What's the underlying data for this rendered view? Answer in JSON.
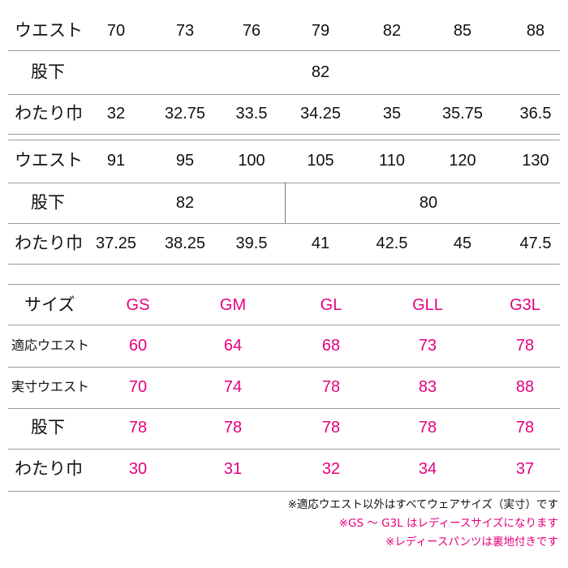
{
  "table_1": {
    "rows": [
      {
        "label": "ウエスト",
        "values": [
          70,
          73,
          76,
          79,
          82,
          85,
          88
        ]
      },
      {
        "label": "股下",
        "values": [
          82
        ]
      },
      {
        "label": "わたり巾",
        "values": [
          32,
          32.75,
          33.5,
          34.25,
          35,
          35.75,
          36.5
        ]
      }
    ]
  },
  "table_2": {
    "rows": [
      {
        "label": "ウエスト",
        "values": [
          91,
          95,
          100,
          105,
          110,
          120,
          130
        ]
      },
      {
        "label": "股下",
        "values": [
          82,
          80
        ]
      },
      {
        "label": "わたり巾",
        "values": [
          37.25,
          38.25,
          39.5,
          41,
          42.5,
          45,
          47.5
        ]
      }
    ]
  },
  "table_3": {
    "header": {
      "label": "サイズ",
      "values": [
        "GS",
        "GM",
        "GL",
        "GLL",
        "G3L"
      ]
    },
    "rows": [
      {
        "label": "適応ウエスト",
        "values": [
          60,
          64,
          68,
          73,
          78
        ]
      },
      {
        "label": "実寸ウエスト",
        "values": [
          70,
          74,
          78,
          83,
          88
        ]
      },
      {
        "label": "股下",
        "values": [
          78,
          78,
          78,
          78,
          78
        ]
      },
      {
        "label": "わたり巾",
        "values": [
          30,
          31,
          32,
          34,
          37
        ]
      }
    ]
  },
  "notes": [
    "※適応ウエスト以外はすべてウェアサイズ（実寸）です",
    "※GS ～ G3L はレディースサイズになります",
    "※レディースパンツは裏地付きです"
  ]
}
